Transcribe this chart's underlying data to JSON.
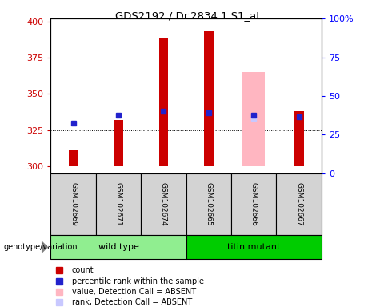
{
  "title": "GDS2192 / Dr.2834.1.S1_at",
  "samples": [
    "GSM102669",
    "GSM102671",
    "GSM102674",
    "GSM102665",
    "GSM102666",
    "GSM102667"
  ],
  "ylim_left": [
    295,
    402
  ],
  "ylim_right": [
    0,
    100
  ],
  "yticks_left": [
    300,
    325,
    350,
    375,
    400
  ],
  "yticks_right": [
    0,
    25,
    50,
    75,
    100
  ],
  "ytick_labels_right": [
    "0",
    "25",
    "50",
    "75",
    "100%"
  ],
  "count_values": [
    311,
    332,
    388,
    393,
    300,
    338
  ],
  "percentile_values": [
    330,
    335,
    338,
    337,
    335,
    334
  ],
  "absent_value_values": [
    null,
    null,
    null,
    null,
    365,
    null
  ],
  "absent_rank_values": [
    null,
    null,
    null,
    null,
    333,
    null
  ],
  "bar_width": 0.35,
  "count_color": "#cc0000",
  "percentile_color": "#2222cc",
  "absent_value_color": "#ffb6c1",
  "absent_rank_color": "#c8c8ff",
  "base_value": 300,
  "wt_color": "#90ee90",
  "tm_color": "#00cc00",
  "sample_bg_color": "#d3d3d3",
  "legend_items": [
    {
      "label": "count",
      "color": "#cc0000"
    },
    {
      "label": "percentile rank within the sample",
      "color": "#2222cc"
    },
    {
      "label": "value, Detection Call = ABSENT",
      "color": "#ffb6c1"
    },
    {
      "label": "rank, Detection Call = ABSENT",
      "color": "#c8c8ff"
    }
  ]
}
